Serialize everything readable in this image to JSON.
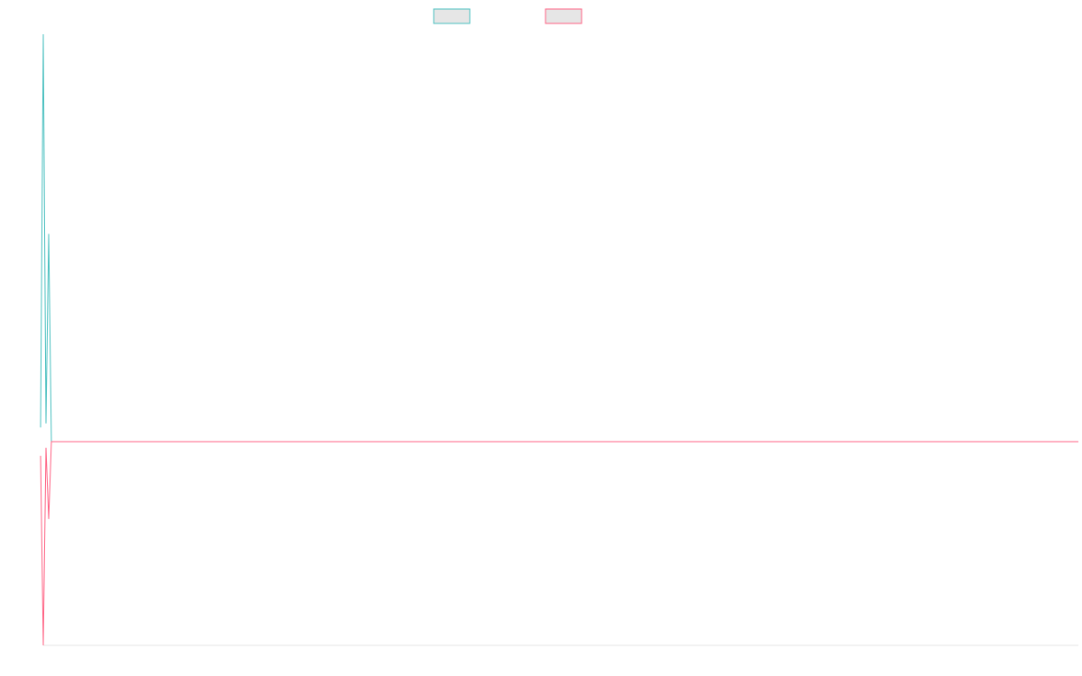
{
  "chart_data": {
    "type": "line",
    "title": "",
    "xlabel": "",
    "ylabel": "",
    "grid": false,
    "legend_position": "top-center",
    "ylim": [
      -1,
      1
    ],
    "xlim": [
      0,
      190
    ],
    "series": [
      {
        "color": "#4bc0c0",
        "points": [
          [
            -0.5,
            0.07
          ],
          [
            0,
            2.0
          ],
          [
            0.5,
            0.09
          ],
          [
            1,
            1.02
          ],
          [
            1.5,
            0.0
          ],
          [
            190,
            0.0
          ]
        ]
      },
      {
        "color": "#ff6384",
        "points": [
          [
            -0.5,
            -0.07
          ],
          [
            0,
            -1.0
          ],
          [
            0.5,
            -0.03
          ],
          [
            1,
            -0.38
          ],
          [
            1.5,
            0.0
          ],
          [
            190,
            0.0
          ]
        ]
      }
    ]
  }
}
